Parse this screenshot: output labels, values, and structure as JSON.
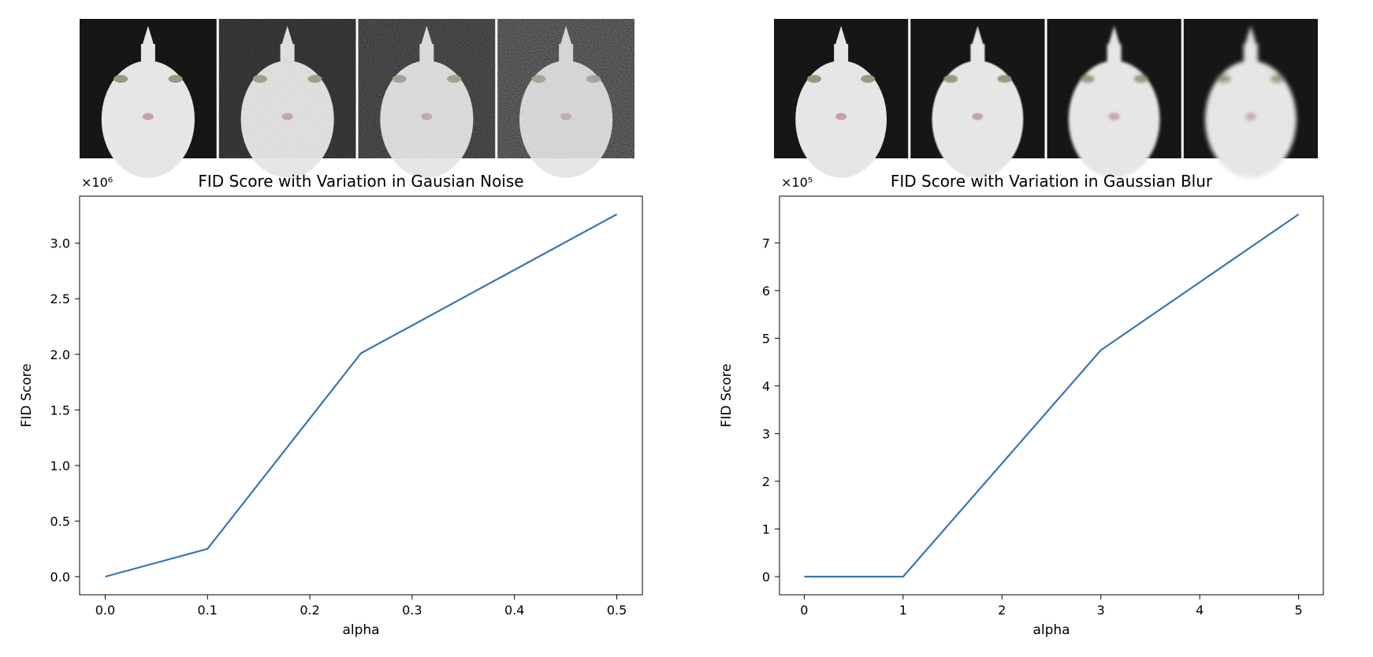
{
  "chart_data": [
    {
      "type": "line",
      "title": "FID Score with Variation in Gausian Noise",
      "xlabel": "alpha",
      "ylabel": "FID Score",
      "offset_label": "×10⁶",
      "scale": 1000000,
      "x": [
        0.0,
        0.1,
        0.25,
        0.5
      ],
      "y": [
        0,
        250000,
        2010000,
        3260000
      ],
      "xlim": [
        -0.025,
        0.525
      ],
      "ylim": [
        -163000,
        3423000
      ],
      "xticks": [
        0.0,
        0.1,
        0.2,
        0.3,
        0.4,
        0.5
      ],
      "xtick_labels": [
        "0.0",
        "0.1",
        "0.2",
        "0.3",
        "0.4",
        "0.5"
      ],
      "yticks": [
        0,
        500000,
        1000000,
        1500000,
        2000000,
        2500000,
        3000000
      ],
      "ytick_labels": [
        "0.0",
        "0.5",
        "1.0",
        "1.5",
        "2.0",
        "2.5",
        "3.0"
      ],
      "grid": false,
      "line_color": "#3a75b0",
      "strip": {
        "kind": "noise",
        "images": [
          "cat-noise-0",
          "cat-noise-0.1",
          "cat-noise-0.25",
          "cat-noise-0.5"
        ]
      }
    },
    {
      "type": "line",
      "title": "FID Score with Variation in Gaussian Blur",
      "xlabel": "alpha",
      "ylabel": "FID Score",
      "offset_label": "×10⁵",
      "scale": 100000,
      "x": [
        0,
        1,
        3,
        5
      ],
      "y": [
        0,
        0,
        475000,
        760000
      ],
      "xlim": [
        -0.25,
        5.25
      ],
      "ylim": [
        -38000,
        798000
      ],
      "xticks": [
        0,
        1,
        2,
        3,
        4,
        5
      ],
      "xtick_labels": [
        "0",
        "1",
        "2",
        "3",
        "4",
        "5"
      ],
      "yticks": [
        0,
        100000,
        200000,
        300000,
        400000,
        500000,
        600000,
        700000
      ],
      "ytick_labels": [
        "0",
        "1",
        "2",
        "3",
        "4",
        "5",
        "6",
        "7"
      ],
      "grid": false,
      "line_color": "#3a75b0",
      "strip": {
        "kind": "blur",
        "images": [
          "cat-blur-0",
          "cat-blur-1",
          "cat-blur-3",
          "cat-blur-5"
        ]
      }
    }
  ]
}
